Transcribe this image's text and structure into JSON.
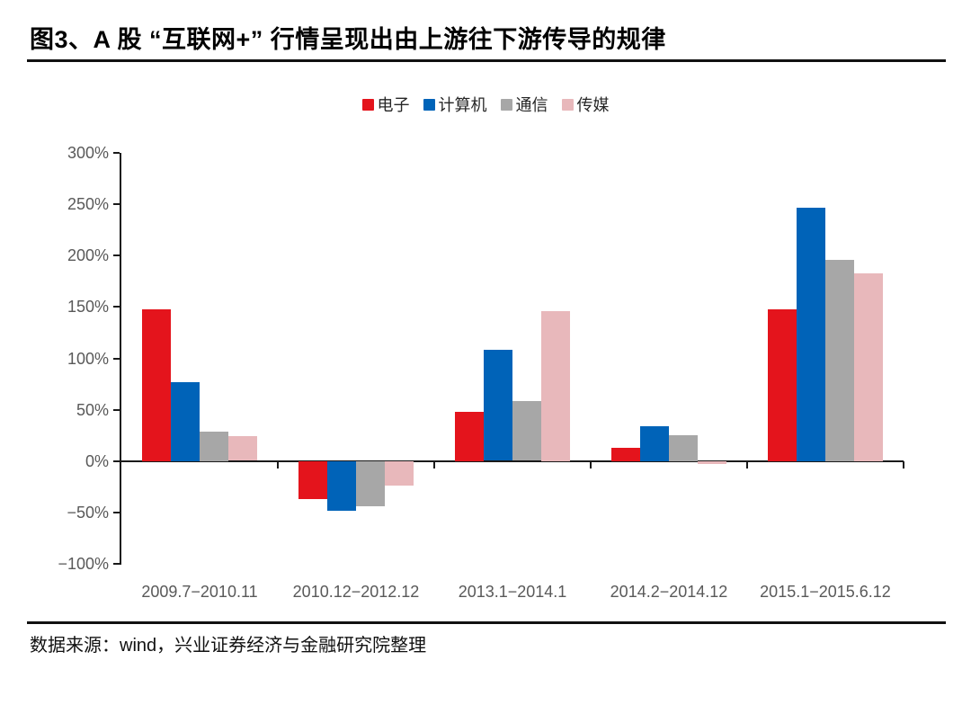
{
  "header": {
    "title": "图3、A 股 “互联网+” 行情呈现出由上游往下游传导的规律"
  },
  "footer": {
    "source": "数据来源：wind，兴业证券经济与金融研究院整理"
  },
  "colors": {
    "axis": "#1a1a1a",
    "tick_label": "#595959",
    "series_red": "#e4141c",
    "series_blue": "#0063b8",
    "series_gray": "#a7a7a7",
    "series_pink": "#e8b8bb"
  },
  "chart_data": {
    "type": "bar",
    "title": "图3、A 股 “互联网+” 行情呈现出由上游往下游传导的规律",
    "xlabel": "",
    "ylabel": "",
    "categories": [
      "2009.7−2010.11",
      "2010.12−2012.12",
      "2013.1−2014.1",
      "2014.2−2014.12",
      "2015.1−2015.6.12"
    ],
    "series": [
      {
        "name": "电子",
        "color": "#e4141c",
        "values": [
          148,
          -37,
          48,
          13,
          148
        ]
      },
      {
        "name": "计算机",
        "color": "#0063b8",
        "values": [
          77,
          -48,
          108,
          34,
          247
        ]
      },
      {
        "name": "通信",
        "color": "#a7a7a7",
        "values": [
          29,
          -44,
          58,
          25,
          196
        ]
      },
      {
        "name": "传媒",
        "color": "#e8b8bb",
        "values": [
          24,
          -24,
          146,
          -3,
          183
        ]
      }
    ],
    "ylim": [
      -100,
      300
    ],
    "yticks": [
      300,
      250,
      200,
      150,
      100,
      50,
      0,
      -50,
      -100
    ],
    "ytick_labels": [
      "300%",
      "250%",
      "200%",
      "150%",
      "100%",
      "50%",
      "0%",
      "−50%",
      "−100%"
    ],
    "legend_position": "top",
    "grid": false,
    "source_note": "数据来源：wind，兴业证券经济与金融研究院整理"
  }
}
